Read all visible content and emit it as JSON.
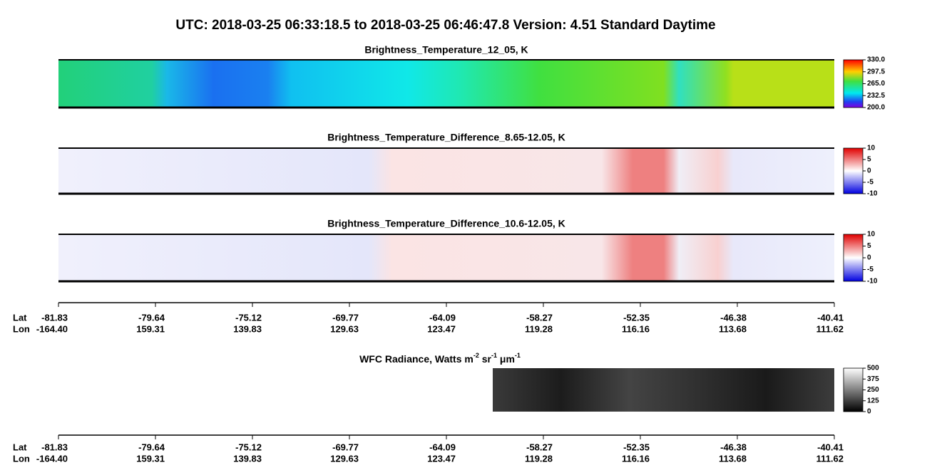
{
  "title": "UTC:  2018-03-25   06:33:18.5  to  2018-03-25   06:46:47.8    Version: 4.51  Standard Daytime",
  "panels": [
    {
      "title": "Brightness_Temperature_12_05, K",
      "colorbar": {
        "lim": [
          200,
          330
        ],
        "ticks": [
          {
            "value": 330,
            "label": "330.0"
          },
          {
            "value": 297.5,
            "label": "297.5"
          },
          {
            "value": 265,
            "label": "265.0"
          },
          {
            "value": 232.5,
            "label": "232.5"
          },
          {
            "value": 200,
            "label": "200.0"
          }
        ]
      }
    },
    {
      "title": "Brightness_Temperature_Difference_8.65-12.05, K",
      "colorbar": {
        "lim": [
          -10,
          10
        ],
        "ticks": [
          10,
          5,
          0,
          -5,
          -10
        ]
      }
    },
    {
      "title": "Brightness_Temperature_Difference_10.6-12.05, K",
      "colorbar": {
        "lim": [
          -10,
          10
        ],
        "ticks": [
          10,
          5,
          0,
          -5,
          -10
        ]
      }
    },
    {
      "title_parts": [
        "WFC Radiance, Watts m",
        "-2",
        " sr",
        "-1",
        " μm",
        "-1"
      ],
      "colorbar": {
        "lim": [
          0,
          500
        ],
        "ticks": [
          500,
          375,
          250,
          125,
          0
        ]
      }
    }
  ],
  "axes": [
    {
      "lat_label": "Lat",
      "lon_label": "Lon",
      "lat": [
        "-81.83",
        "-79.64",
        "-75.12",
        "-69.77",
        "-64.09",
        "-58.27",
        "-52.35",
        "-46.38",
        "-40.41"
      ],
      "lon": [
        "-164.40",
        "159.31",
        "139.83",
        "129.63",
        "123.47",
        "119.28",
        "116.16",
        "113.68",
        "111.62"
      ]
    },
    {
      "lat_label": "Lat",
      "lon_label": "Lon",
      "lat": [
        "-81.83",
        "-79.64",
        "-75.12",
        "-69.77",
        "-64.09",
        "-58.27",
        "-52.35",
        "-46.38",
        "-40.41"
      ],
      "lon": [
        "-164.40",
        "159.31",
        "139.83",
        "129.63",
        "123.47",
        "119.28",
        "116.16",
        "113.68",
        "111.62"
      ]
    }
  ]
}
